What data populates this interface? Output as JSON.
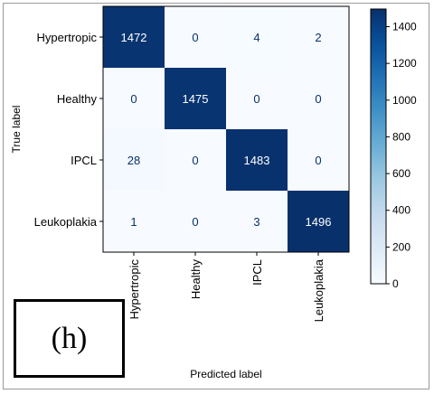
{
  "panel_label": "(h)",
  "chart_data": {
    "type": "heatmap",
    "title": "",
    "xlabel": "Predicted label",
    "ylabel": "True label",
    "x_categories": [
      "Hypertropic",
      "Healthy",
      "IPCL",
      "Leukoplakia"
    ],
    "y_categories": [
      "Hypertropic",
      "Healthy",
      "IPCL",
      "Leukoplakia"
    ],
    "matrix": [
      [
        1472,
        0,
        4,
        2
      ],
      [
        0,
        1475,
        0,
        0
      ],
      [
        28,
        0,
        1483,
        0
      ],
      [
        1,
        0,
        3,
        1496
      ]
    ],
    "colormap": "Blues",
    "colorbar": {
      "range": [
        0,
        1496
      ],
      "ticks": [
        0,
        200,
        400,
        600,
        800,
        1000,
        1200,
        1400
      ]
    },
    "colors": {
      "low": "#f7fbff",
      "high": "#08306b",
      "text_dark": "#08306b",
      "text_light": "#ffffff"
    },
    "grid": false
  }
}
